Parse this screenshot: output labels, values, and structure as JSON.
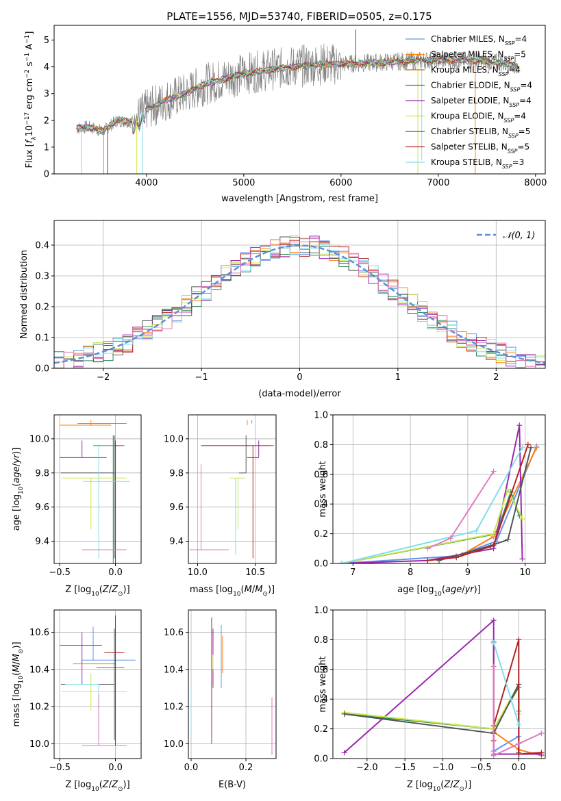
{
  "figure": {
    "title": "PLATE=1556, MJD=53740, FIBERID=0505, z=0.175"
  },
  "colors": {
    "chabrier_miles": "#6495ed",
    "salpeter_miles": "#ff7f0e",
    "kroupa_miles": "#d2691e",
    "chabrier_elodie": "#2e8b57",
    "salpeter_elodie": "#9c27b0",
    "kroupa_elodie": "#c8e84a",
    "chabrier_stelib": "#555555",
    "salpeter_stelib": "#b22222",
    "kroupa_stelib": "#80deea",
    "pink": "#e377c2",
    "data": "#808080",
    "gaussian": "#5b8fd9"
  },
  "chart_data": [
    {
      "id": "spectrum",
      "type": "line",
      "xlabel": "wavelength [Angstrom, rest frame]",
      "ylabel": "Flux [f_λ 10^-17 erg cm^-2 s^-1 A^-1]",
      "xlim": [
        3050,
        8100
      ],
      "ylim": [
        0,
        5.55
      ],
      "xticks": [
        4000,
        5000,
        6000,
        7000,
        8000
      ],
      "yticks": [
        0,
        1,
        2,
        3,
        4,
        5
      ],
      "legend_position": "right",
      "legend": [
        {
          "label": "Chabrier MILES, N",
          "sub": "SSP",
          "val": "=4",
          "color": "#6495ed"
        },
        {
          "label": "Salpeter MILES, N",
          "sub": "SSP",
          "val": "=5",
          "color": "#ff7f0e"
        },
        {
          "label": "Kroupa MILES, N",
          "sub": "SSP",
          "val": "=4",
          "color": "#d2691e"
        },
        {
          "label": "Chabrier ELODIE, N",
          "sub": "SSP",
          "val": "=4",
          "color": "#2e8b57"
        },
        {
          "label": "Salpeter ELODIE, N",
          "sub": "SSP",
          "val": "=4",
          "color": "#9c27b0"
        },
        {
          "label": "Kroupa ELODIE, N",
          "sub": "SSP",
          "val": "=4",
          "color": "#c8e84a"
        },
        {
          "label": "Chabrier STELIB, N",
          "sub": "SSP",
          "val": "=5",
          "color": "#555555"
        },
        {
          "label": "Salpeter STELIB, N",
          "sub": "SSP",
          "val": "=5",
          "color": "#b22222"
        },
        {
          "label": "Kroupa STELIB, N",
          "sub": "SSP",
          "val": "=3",
          "color": "#80deea"
        }
      ],
      "model_continuum": [
        [
          3280,
          1.7
        ],
        [
          3400,
          1.75
        ],
        [
          3550,
          1.6
        ],
        [
          3700,
          2.0
        ],
        [
          3850,
          1.95
        ],
        [
          4000,
          2.4
        ],
        [
          4200,
          2.75
        ],
        [
          4400,
          3.0
        ],
        [
          4600,
          3.35
        ],
        [
          4800,
          3.55
        ],
        [
          5000,
          3.75
        ],
        [
          5200,
          3.85
        ],
        [
          5500,
          4.0
        ],
        [
          5800,
          4.1
        ],
        [
          6000,
          4.1
        ],
        [
          6300,
          4.15
        ],
        [
          6600,
          4.2
        ],
        [
          6900,
          4.25
        ],
        [
          7200,
          4.25
        ],
        [
          7500,
          4.2
        ],
        [
          7820,
          4.05
        ]
      ],
      "spikes": [
        [
          3330,
          0
        ],
        [
          3560,
          0
        ],
        [
          3600,
          0
        ],
        [
          3900,
          0
        ],
        [
          3960,
          0
        ],
        [
          5850,
          4.0
        ],
        [
          6150,
          5.4
        ],
        [
          6790,
          0
        ],
        [
          6830,
          0.5
        ],
        [
          7380,
          0
        ]
      ]
    },
    {
      "id": "residuals",
      "type": "histogram",
      "xlabel": "(data-model)/error",
      "ylabel": "Normed distribution",
      "xlim": [
        -2.5,
        2.5
      ],
      "ylim": [
        0,
        0.48
      ],
      "xticks": [
        -2,
        -1,
        0,
        1,
        2
      ],
      "yticks": [
        0.0,
        0.1,
        0.2,
        0.3,
        0.4
      ],
      "grid": true,
      "legend": [
        {
          "label": "𝒩(0, 1)",
          "color": "#5b8fd9"
        }
      ],
      "legend_position": "top-right",
      "bin_width": 0.1
    },
    {
      "id": "age_vs_Z",
      "type": "errorbar",
      "xlabel": "Z [log10(Z/Z⊙)]",
      "ylabel": "age  [log10(age/yr)]",
      "xlim": [
        -0.55,
        0.23
      ],
      "ylim": [
        9.27,
        10.14
      ],
      "xticks": [
        -0.5,
        0.0
      ],
      "yticks": [
        9.4,
        9.6,
        9.8,
        10.0
      ],
      "points": [
        {
          "x": -0.2,
          "y": 10.09,
          "xerr": [
            0.14,
            0.3
          ],
          "yerr": [
            0.0,
            0.0
          ],
          "color": "#6495ed"
        },
        {
          "x": -0.22,
          "y": 10.08,
          "xerr": [
            0.28,
            0.18
          ],
          "yerr": [
            0.0,
            0.03
          ],
          "color": "#ff7f0e"
        },
        {
          "x": -0.02,
          "y": 9.96,
          "xerr": [
            0.18,
            0.05
          ],
          "yerr": [
            0.7,
            0.06
          ],
          "color": "#2e8b57"
        },
        {
          "x": -0.3,
          "y": 9.89,
          "xerr": [
            0.2,
            0.22
          ],
          "yerr": [
            0.0,
            0.1
          ],
          "color": "#9c27b0"
        },
        {
          "x": -0.22,
          "y": 9.77,
          "xerr": [
            0.26,
            0.32
          ],
          "yerr": [
            0.3,
            0.0
          ],
          "color": "#c8e84a"
        },
        {
          "x": -0.01,
          "y": 9.8,
          "xerr": [
            0.48,
            0.0
          ],
          "yerr": [
            0.5,
            0.22
          ],
          "color": "#555555"
        },
        {
          "x": 0.0,
          "y": 9.96,
          "xerr": [
            0.0,
            0.08
          ],
          "yerr": [
            0.7,
            0.03
          ],
          "color": "#b22222"
        },
        {
          "x": -0.15,
          "y": 9.75,
          "xerr": [
            0.14,
            0.28
          ],
          "yerr": [
            0.45,
            0.22
          ],
          "color": "#80deea"
        },
        {
          "x": -0.15,
          "y": 9.35,
          "xerr": [
            0.15,
            0.25
          ],
          "yerr": [
            0.0,
            0.0
          ],
          "color": "#e377c2"
        }
      ]
    },
    {
      "id": "age_vs_mass",
      "type": "errorbar",
      "xlabel": "mass [log10(M/M⊙)]",
      "ylabel": "",
      "xlim": [
        9.92,
        10.68
      ],
      "ylim": [
        9.27,
        10.14
      ],
      "xticks": [
        10.0,
        10.5
      ],
      "yticks": [
        9.4,
        9.6,
        9.8,
        10.0
      ],
      "points": [
        {
          "x": 10.47,
          "y": 10.09,
          "xerr": [
            0.0,
            0.0
          ],
          "yerr": [
            0.0,
            0.02
          ],
          "color": "#6495ed"
        },
        {
          "x": 10.43,
          "y": 10.08,
          "xerr": [
            0.0,
            0.0
          ],
          "yerr": [
            0.0,
            0.03
          ],
          "color": "#ff7f0e"
        },
        {
          "x": 10.28,
          "y": 9.96,
          "xerr": [
            0.25,
            0.35
          ],
          "yerr": [
            0.0,
            0.0
          ],
          "color": "#2e8b57"
        },
        {
          "x": 10.53,
          "y": 9.89,
          "xerr": [
            0.1,
            0.0
          ],
          "yerr": [
            0.0,
            0.1
          ],
          "color": "#9c27b0"
        },
        {
          "x": 10.35,
          "y": 9.77,
          "xerr": [
            0.07,
            0.06
          ],
          "yerr": [
            0.3,
            0.0
          ],
          "color": "#c8e84a"
        },
        {
          "x": 10.42,
          "y": 9.8,
          "xerr": [
            0.06,
            0.0
          ],
          "yerr": [
            0.0,
            0.22
          ],
          "color": "#555555"
        },
        {
          "x": 10.48,
          "y": 9.96,
          "xerr": [
            0.45,
            0.18
          ],
          "yerr": [
            0.66,
            0.0
          ],
          "color": "#b22222"
        },
        {
          "x": 10.33,
          "y": 9.77,
          "xerr": [
            0.0,
            0.0
          ],
          "yerr": [
            0.45,
            0.0
          ],
          "color": "#80deea"
        },
        {
          "x": 10.03,
          "y": 9.35,
          "xerr": [
            0.1,
            0.24
          ],
          "yerr": [
            0.0,
            0.5
          ],
          "color": "#e377c2"
        }
      ]
    },
    {
      "id": "weight_vs_age",
      "type": "line",
      "xlabel": "age  [log10(age/yr)]",
      "ylabel": "mass weight",
      "xlim": [
        6.65,
        10.35
      ],
      "ylim": [
        0,
        1.0
      ],
      "xticks": [
        7,
        8,
        9,
        10
      ],
      "yticks": [
        0.0,
        0.2,
        0.4,
        0.6,
        0.8,
        1.0
      ],
      "grid": true,
      "series": [
        {
          "color": "#6495ed",
          "x": [
            6.8,
            8.8,
            9.5,
            10.2
          ],
          "y": [
            0.0,
            0.05,
            0.15,
            0.79
          ]
        },
        {
          "color": "#ff7f0e",
          "x": [
            8.3,
            8.9,
            9.45,
            10.2
          ],
          "y": [
            0.02,
            0.06,
            0.18,
            0.78
          ]
        },
        {
          "color": "#2e8b57",
          "x": [
            6.8,
            9.5,
            9.75,
            9.9
          ],
          "y": [
            0.0,
            0.2,
            0.48,
            0.32
          ]
        },
        {
          "color": "#9c27b0",
          "x": [
            6.8,
            8.3,
            9.45,
            9.9,
            9.95
          ],
          "y": [
            0.0,
            0.02,
            0.1,
            0.93,
            0.03
          ]
        },
        {
          "color": "#c8e84a",
          "x": [
            6.8,
            9.45,
            9.7,
            9.95
          ],
          "y": [
            0.0,
            0.2,
            0.5,
            0.3
          ]
        },
        {
          "color": "#555555",
          "x": [
            8.5,
            9.4,
            9.7,
            10.1
          ],
          "y": [
            0.02,
            0.12,
            0.16,
            0.78
          ]
        },
        {
          "color": "#b22222",
          "x": [
            8.3,
            8.8,
            9.45,
            10.05
          ],
          "y": [
            0.02,
            0.04,
            0.12,
            0.8
          ]
        },
        {
          "color": "#80deea",
          "x": [
            6.8,
            9.15,
            9.95
          ],
          "y": [
            0.0,
            0.22,
            0.78
          ]
        },
        {
          "color": "#e377c2",
          "x": [
            8.3,
            8.7,
            9.45
          ],
          "y": [
            0.1,
            0.17,
            0.62
          ]
        }
      ]
    },
    {
      "id": "mass_vs_Z",
      "type": "errorbar",
      "xlabel": "Z [log10(Z/Z⊙)]",
      "ylabel": "mass [log10(M/M⊙)]",
      "xlim": [
        -0.55,
        0.23
      ],
      "ylim": [
        9.92,
        10.72
      ],
      "xticks": [
        -0.5,
        0.0
      ],
      "yticks": [
        10.0,
        10.2,
        10.4,
        10.6
      ],
      "points": [
        {
          "x": -0.2,
          "y": 10.45,
          "xerr": [
            0.1,
            0.38
          ],
          "yerr": [
            0.0,
            0.18
          ],
          "color": "#6495ed"
        },
        {
          "x": -0.22,
          "y": 10.43,
          "xerr": [
            0.16,
            0.22
          ],
          "yerr": [
            0.0,
            0.0
          ],
          "color": "#ff7f0e"
        },
        {
          "x": -0.02,
          "y": 10.41,
          "xerr": [
            0.15,
            0.1
          ],
          "yerr": [
            0.0,
            0.0
          ],
          "color": "#2e8b57"
        },
        {
          "x": -0.3,
          "y": 10.53,
          "xerr": [
            0.2,
            0.18
          ],
          "yerr": [
            0.21,
            0.07
          ],
          "color": "#9c27b0"
        },
        {
          "x": -0.22,
          "y": 10.28,
          "xerr": [
            0.26,
            0.32
          ],
          "yerr": [
            0.1,
            0.1
          ],
          "color": "#c8e84a"
        },
        {
          "x": -0.01,
          "y": 10.32,
          "xerr": [
            0.48,
            0.0
          ],
          "yerr": [
            0.3,
            0.3
          ],
          "color": "#555555"
        },
        {
          "x": 0.0,
          "y": 10.49,
          "xerr": [
            0.1,
            0.08
          ],
          "yerr": [
            0.5,
            0.2
          ],
          "color": "#b22222"
        },
        {
          "x": -0.15,
          "y": 10.32,
          "xerr": [
            0.3,
            0.0
          ],
          "yerr": [
            0.3,
            0.0
          ],
          "color": "#80deea"
        },
        {
          "x": -0.15,
          "y": 9.99,
          "xerr": [
            0.15,
            0.25
          ],
          "yerr": [
            0.0,
            0.28
          ],
          "color": "#e377c2"
        }
      ]
    },
    {
      "id": "mass_vs_EBV",
      "type": "errorbar",
      "xlabel": "E(B-V)",
      "ylabel": "",
      "xlim": [
        -0.01,
        0.31
      ],
      "ylim": [
        9.92,
        10.72
      ],
      "xticks": [
        0.0,
        0.2
      ],
      "yticks": [
        10.0,
        10.2,
        10.4,
        10.6
      ],
      "points": [
        {
          "x": 0.11,
          "y": 10.42,
          "yerr": [
            0.12,
            0.22
          ],
          "color": "#6495ed"
        },
        {
          "x": 0.115,
          "y": 10.43,
          "yerr": [
            0.05,
            0.15
          ],
          "color": "#ff7f0e"
        },
        {
          "x": 0.08,
          "y": 10.42,
          "yerr": [
            0.12,
            0.2
          ],
          "color": "#2e8b57"
        },
        {
          "x": 0.08,
          "y": 10.46,
          "yerr": [
            0.15,
            0.15
          ],
          "color": "#9c27b0"
        },
        {
          "x": 0.08,
          "y": 10.44,
          "yerr": [
            0.04,
            0.04
          ],
          "color": "#c8e84a"
        },
        {
          "x": 0.075,
          "y": 10.4,
          "yerr": [
            0.4,
            0.2
          ],
          "color": "#555555"
        },
        {
          "x": 0.075,
          "y": 10.45,
          "yerr": [
            0.4,
            0.23
          ],
          "color": "#b22222"
        },
        {
          "x": 0.0,
          "y": 10.2,
          "yerr": [
            0.15,
            0.12
          ],
          "color": "#80deea"
        },
        {
          "x": 0.295,
          "y": 10.1,
          "yerr": [
            0.16,
            0.15
          ],
          "color": "#e377c2"
        }
      ]
    },
    {
      "id": "weight_vs_Z",
      "type": "line",
      "xlabel": "Z [log10(Z/Z⊙)]",
      "ylabel": "mass weight",
      "xlim": [
        -2.45,
        0.35
      ],
      "ylim": [
        0,
        1.0
      ],
      "xticks": [
        -2.0,
        -1.5,
        -1.0,
        -0.5,
        0.0
      ],
      "yticks": [
        0.0,
        0.2,
        0.4,
        0.6,
        0.8,
        1.0
      ],
      "grid": true,
      "series": [
        {
          "color": "#6495ed",
          "x": [
            -0.33,
            -0.33,
            0.0,
            0.0
          ],
          "y": [
            0.79,
            0.05,
            0.15,
            0.0
          ]
        },
        {
          "color": "#ff7f0e",
          "x": [
            -0.33,
            -0.33,
            0.0,
            0.3
          ],
          "y": [
            0.78,
            0.18,
            0.06,
            0.02
          ]
        },
        {
          "color": "#2e8b57",
          "x": [
            -2.3,
            -0.33,
            0.0,
            0.0
          ],
          "y": [
            0.3,
            0.2,
            0.48,
            0.32
          ]
        },
        {
          "color": "#9c27b0",
          "x": [
            -2.3,
            -0.33,
            -0.33,
            0.3
          ],
          "y": [
            0.04,
            0.93,
            0.03,
            0.03
          ]
        },
        {
          "color": "#c8e84a",
          "x": [
            -2.3,
            -0.33,
            0.0,
            0.0
          ],
          "y": [
            0.31,
            0.2,
            0.5,
            0.3
          ]
        },
        {
          "color": "#555555",
          "x": [
            -2.3,
            -0.33,
            0.0,
            0.0
          ],
          "y": [
            0.3,
            0.17,
            0.5,
            0.04
          ]
        },
        {
          "color": "#b22222",
          "x": [
            -0.33,
            -0.33,
            0.0,
            0.0,
            0.3
          ],
          "y": [
            0.12,
            0.22,
            0.8,
            0.03,
            0.04
          ]
        },
        {
          "color": "#80deea",
          "x": [
            -0.33,
            0.0
          ],
          "y": [
            0.78,
            0.23
          ]
        },
        {
          "color": "#e377c2",
          "x": [
            -0.33,
            -0.33,
            0.0,
            0.3
          ],
          "y": [
            0.62,
            0.02,
            0.1,
            0.17
          ]
        }
      ]
    }
  ]
}
